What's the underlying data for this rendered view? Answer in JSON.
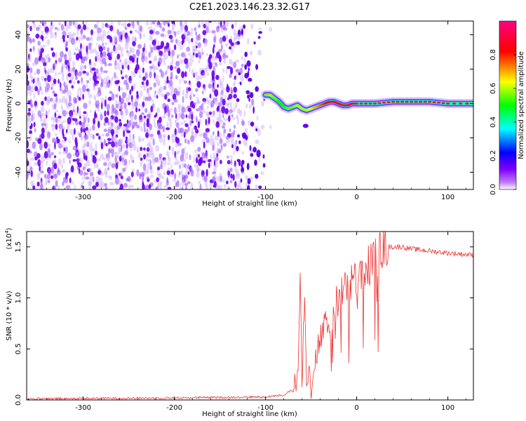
{
  "figure": {
    "title": "C2E1.2023.146.23.32.G17"
  },
  "chart_data": [
    {
      "type": "heatmap",
      "name": "spectrogram",
      "title": "C2E1.2023.146.23.32.G17",
      "xlabel": "Height of straight line (km)",
      "ylabel": "Frequency (Hz)",
      "xlim": [
        -362,
        128
      ],
      "ylim": [
        -50,
        48
      ],
      "xticks": [
        -300,
        -200,
        -100,
        0,
        100
      ],
      "yticks": [
        -40,
        -20,
        0,
        20,
        40
      ],
      "colorbar": {
        "label": "Normalized spectral amplitude",
        "range": [
          0.0,
          1.0
        ],
        "ticks": [
          0.0,
          0.2,
          0.4,
          0.6,
          0.8
        ],
        "colormap": "rainbow",
        "colors": [
          "#ffffff",
          "#8000ff",
          "#0000ff",
          "#00ffff",
          "#00ff00",
          "#ffff00",
          "#ff0000",
          "#ff0080"
        ]
      },
      "noise_region": {
        "x_start": -362,
        "x_end": -100,
        "typical_amplitude": 0.1
      },
      "signal_trace": [
        {
          "x": -100,
          "y": 5,
          "amplitude": 0.55
        },
        {
          "x": -95,
          "y": 5,
          "amplitude": 0.6
        },
        {
          "x": -90,
          "y": 3,
          "amplitude": 0.55
        },
        {
          "x": -85,
          "y": 1,
          "amplitude": 0.5
        },
        {
          "x": -80,
          "y": -2,
          "amplitude": 0.5
        },
        {
          "x": -75,
          "y": -3,
          "amplitude": 0.55
        },
        {
          "x": -70,
          "y": -2,
          "amplitude": 0.55
        },
        {
          "x": -65,
          "y": -1,
          "amplitude": 0.6
        },
        {
          "x": -60,
          "y": -3,
          "amplitude": 0.6
        },
        {
          "x": -55,
          "y": -4,
          "amplitude": 0.6
        },
        {
          "x": -50,
          "y": -3,
          "amplitude": 0.65
        },
        {
          "x": -45,
          "y": -2,
          "amplitude": 0.7
        },
        {
          "x": -40,
          "y": -1,
          "amplitude": 0.75
        },
        {
          "x": -35,
          "y": 0,
          "amplitude": 0.8
        },
        {
          "x": -30,
          "y": 1,
          "amplitude": 0.85
        },
        {
          "x": -25,
          "y": 1,
          "amplitude": 0.85
        },
        {
          "x": -20,
          "y": 0,
          "amplitude": 0.85
        },
        {
          "x": -15,
          "y": -1,
          "amplitude": 0.8
        },
        {
          "x": -10,
          "y": -1,
          "amplitude": 0.85
        },
        {
          "x": -5,
          "y": 0,
          "amplitude": 0.9
        },
        {
          "x": 0,
          "y": 0,
          "amplitude": 0.95
        },
        {
          "x": 20,
          "y": 0,
          "amplitude": 0.95
        },
        {
          "x": 40,
          "y": 1,
          "amplitude": 0.9
        },
        {
          "x": 60,
          "y": 1,
          "amplitude": 0.92
        },
        {
          "x": 80,
          "y": 1,
          "amplitude": 0.9
        },
        {
          "x": 100,
          "y": 0,
          "amplitude": 0.92
        },
        {
          "x": 128,
          "y": 0,
          "amplitude": 0.9
        }
      ]
    },
    {
      "type": "line",
      "name": "snr",
      "xlabel": "Height of straight line (km)",
      "ylabel": "SNR (10 * v/v)",
      "y_multiplier_label": "(x10",
      "y_multiplier_exp": "4",
      "y_multiplier_close": ")",
      "xlim": [
        -362,
        128
      ],
      "ylim": [
        0,
        1.65
      ],
      "xticks": [
        -300,
        -200,
        -100,
        0,
        100
      ],
      "yticks": [
        0.0,
        0.5,
        1.0,
        1.5
      ],
      "ytick_labels": [
        "0.0",
        "0.5",
        "1.0",
        "1.5"
      ],
      "color": "#ee3333",
      "series": [
        {
          "values_unit": "x10^4",
          "x": [
            -362,
            -300,
            -200,
            -150,
            -100,
            -80,
            -70,
            -65,
            -62,
            -60,
            -57,
            -55,
            -52,
            -50,
            -45,
            -40,
            -35,
            -30,
            -25,
            -20,
            -15,
            -10,
            -5,
            0,
            5,
            10,
            15,
            20,
            25,
            30,
            35,
            40,
            50,
            60,
            80,
            100,
            128
          ],
          "y": [
            0.01,
            0.015,
            0.02,
            0.025,
            0.03,
            0.05,
            0.1,
            0.3,
            1.1,
            0.2,
            1.15,
            0.1,
            0.3,
            0.05,
            0.4,
            0.6,
            0.7,
            0.8,
            0.9,
            1.0,
            1.05,
            1.1,
            1.15,
            1.2,
            1.25,
            1.3,
            1.35,
            1.4,
            1.45,
            1.48,
            1.5,
            1.5,
            1.5,
            1.48,
            1.46,
            1.44,
            1.42
          ]
        }
      ]
    }
  ]
}
